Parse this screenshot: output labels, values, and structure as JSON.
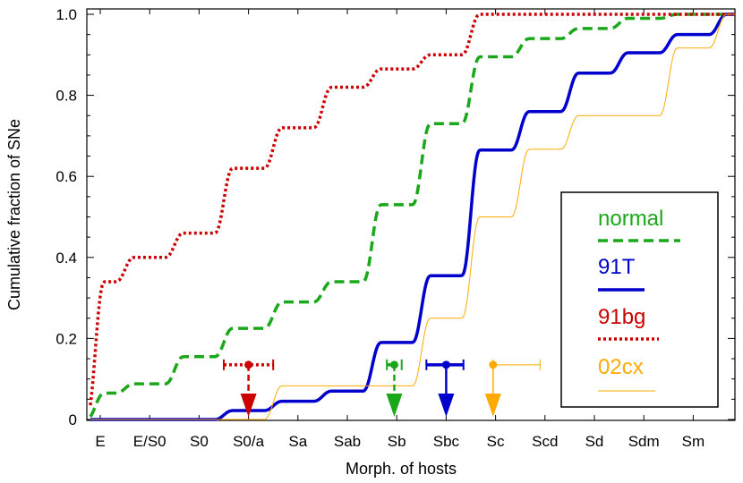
{
  "chart_data": {
    "type": "line",
    "xlabel": "Morph. of hosts",
    "ylabel": "Cumulative  fraction  of  SNe",
    "categories": [
      "E",
      "E/S0",
      "S0",
      "S0/a",
      "Sa",
      "Sab",
      "Sb",
      "Sbc",
      "Sc",
      "Scd",
      "Sd",
      "Sdm",
      "Sm"
    ],
    "ylim": [
      0,
      1
    ],
    "yticks": [
      "0",
      "0.2",
      "0.4",
      "0.6",
      "0.8",
      "1.0"
    ],
    "ytick_values": [
      0,
      0.2,
      0.4,
      0.6,
      0.8,
      1.0
    ],
    "legend_position": "right",
    "series": [
      {
        "name": "normal",
        "color": "#1aa81a",
        "style": "dashed",
        "values": [
          0.065,
          0.088,
          0.155,
          0.225,
          0.29,
          0.34,
          0.53,
          0.73,
          0.895,
          0.94,
          0.965,
          0.99,
          1.0
        ]
      },
      {
        "name": "91T",
        "color": "#0000cc",
        "style": "solid",
        "values": [
          0.0,
          0.0,
          0.0,
          0.022,
          0.045,
          0.07,
          0.19,
          0.355,
          0.665,
          0.76,
          0.855,
          0.905,
          0.95
        ]
      },
      {
        "name": "91bg",
        "color": "#cc0000",
        "style": "dotted",
        "values": [
          0.34,
          0.4,
          0.46,
          0.62,
          0.72,
          0.82,
          0.865,
          0.9,
          1.0,
          1.0,
          1.0,
          1.0,
          1.0
        ]
      },
      {
        "name": "02cx",
        "color": "#ffaa00",
        "style": "thin",
        "values": [
          0.0,
          0.0,
          0.0,
          0.0,
          0.083,
          0.083,
          0.083,
          0.25,
          0.5,
          0.667,
          0.75,
          0.75,
          0.917
        ]
      }
    ],
    "markers": [
      {
        "series": "91bg",
        "color": "#cc0000",
        "x": 3.0,
        "xerr_low": 0.5,
        "xerr_high": 0.5,
        "style": "dotted"
      },
      {
        "series": "normal",
        "color": "#1aa81a",
        "x": 5.95,
        "xerr_low": 0.15,
        "xerr_high": 0.15,
        "style": "dashed"
      },
      {
        "series": "91T",
        "color": "#0000cc",
        "x": 7.0,
        "xerr_low": 0.4,
        "xerr_high": 0.35,
        "style": "solid"
      },
      {
        "series": "02cx",
        "color": "#ffaa00",
        "x": 7.95,
        "xerr_low": 0.0,
        "xerr_high": 0.95,
        "style": "thin"
      }
    ]
  }
}
